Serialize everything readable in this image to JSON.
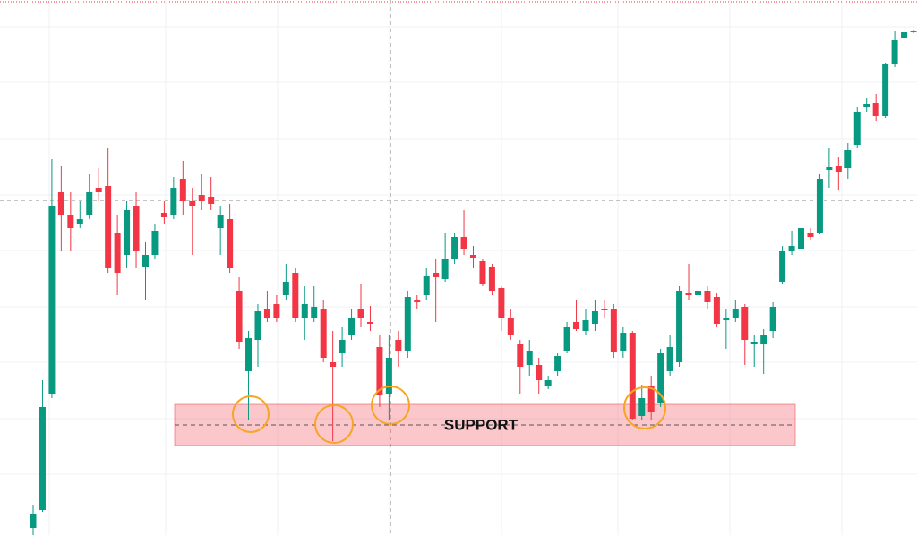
{
  "chart_data": {
    "type": "candlestick",
    "ylim": [
      0,
      598
    ],
    "up_color": "#089981",
    "down_color": "#f23645",
    "open": [
      8,
      28,
      158,
      383,
      358,
      348,
      358,
      388,
      390,
      338,
      313,
      368,
      300,
      313,
      360,
      358,
      398,
      373,
      380,
      378,
      343,
      353,
      273,
      183,
      218,
      253,
      258,
      268,
      293,
      243,
      243,
      253,
      193,
      203,
      223,
      253,
      238,
      210,
      158,
      218,
      206,
      263,
      268,
      293,
      286,
      308,
      333,
      313,
      306,
      300,
      276,
      243,
      213,
      190,
      190,
      166,
      183,
      206,
      238,
      228,
      236,
      253,
      253,
      206,
      226,
      133,
      166,
      148,
      183,
      193,
      270,
      268,
      273,
      266,
      240,
      243,
      255,
      213,
      213,
      228,
      283,
      318,
      320,
      338,
      338,
      408,
      413,
      410,
      436,
      478,
      483,
      468,
      526,
      556,
      563
    ],
    "high": [
      33,
      173,
      420,
      413,
      383,
      373,
      403,
      410,
      433,
      358,
      373,
      383,
      328,
      348,
      373,
      400,
      418,
      388,
      403,
      400,
      368,
      370,
      288,
      228,
      258,
      273,
      268,
      303,
      298,
      278,
      278,
      263,
      228,
      233,
      253,
      280,
      256,
      223,
      223,
      228,
      273,
      268,
      298,
      308,
      338,
      338,
      363,
      323,
      308,
      303,
      278,
      253,
      218,
      218,
      198,
      178,
      203,
      238,
      263,
      253,
      263,
      263,
      258,
      233,
      228,
      168,
      178,
      208,
      223,
      278,
      303,
      288,
      278,
      270,
      253,
      263,
      258,
      223,
      230,
      260,
      323,
      340,
      350,
      343,
      403,
      433,
      423,
      438,
      478,
      488,
      493,
      528,
      563,
      568,
      565
    ],
    "low": [
      0,
      26,
      153,
      318,
      318,
      343,
      353,
      373,
      293,
      268,
      298,
      298,
      263,
      308,
      348,
      353,
      358,
      313,
      363,
      363,
      313,
      293,
      208,
      128,
      188,
      238,
      238,
      263,
      238,
      218,
      238,
      193,
      105,
      188,
      218,
      233,
      228,
      143,
      128,
      188,
      198,
      253,
      263,
      238,
      283,
      303,
      313,
      298,
      278,
      268,
      228,
      218,
      158,
      178,
      158,
      163,
      178,
      203,
      228,
      223,
      228,
      243,
      198,
      198,
      128,
      128,
      128,
      143,
      178,
      188,
      263,
      263,
      253,
      233,
      208,
      238,
      190,
      188,
      180,
      220,
      280,
      313,
      316,
      330,
      336,
      388,
      386,
      398,
      433,
      473,
      463,
      466,
      523,
      553,
      561
    ],
    "close": [
      23,
      143,
      368,
      358,
      343,
      353,
      383,
      383,
      298,
      293,
      363,
      318,
      313,
      340,
      356,
      388,
      373,
      368,
      373,
      370,
      358,
      298,
      216,
      220,
      250,
      243,
      243,
      283,
      243,
      258,
      255,
      198,
      188,
      218,
      243,
      243,
      236,
      156,
      198,
      206,
      266,
      260,
      290,
      288,
      308,
      333,
      320,
      310,
      280,
      273,
      243,
      223,
      188,
      206,
      173,
      173,
      200,
      233,
      230,
      240,
      250,
      252,
      205,
      226,
      130,
      153,
      138,
      203,
      210,
      273,
      268,
      273,
      260,
      236,
      243,
      253,
      218,
      216,
      223,
      255,
      318,
      323,
      343,
      333,
      398,
      411,
      406,
      430,
      473,
      482,
      468,
      526,
      553,
      562,
      562
    ],
    "support_zone": [
      100,
      146
    ],
    "support_level": 123,
    "annotation": "SUPPORT"
  }
}
